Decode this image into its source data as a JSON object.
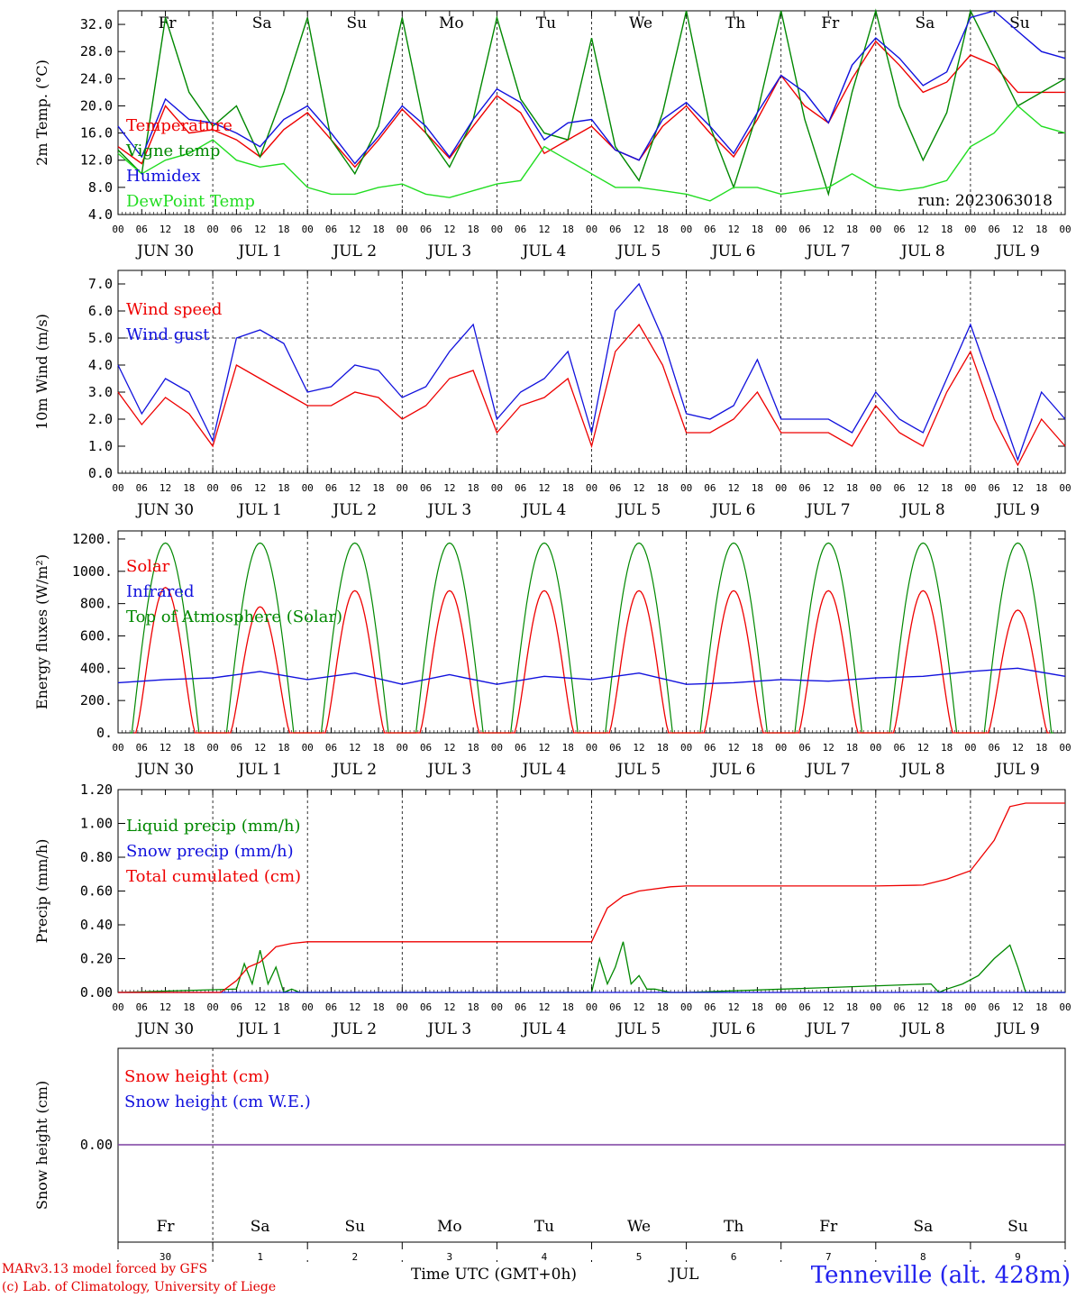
{
  "footer": {
    "model_line": "MARv3.13 model forced by GFS",
    "lab_line": "(c) Lab. of Climatology, University of Liege",
    "time_label": "Time UTC (GMT+0h)",
    "month_label": "JUL",
    "site_label": "Tenneville (alt. 428m)"
  },
  "colors": {
    "red": "#ee0000",
    "blue": "#1111dd",
    "green": "#008800",
    "lightgreen": "#22dd22",
    "purple": "#7b3fa0"
  },
  "chart_data": [
    {
      "type": "line",
      "ylabel": "2m Temp. (°C)",
      "ylim": [
        4,
        34
      ],
      "yticks": [
        "4.0",
        "8.0",
        "12.0",
        "16.0",
        "20.0",
        "24.0",
        "28.0",
        "32.0"
      ],
      "run_label": "run: 2023063018",
      "day_names": [
        "Fr",
        "Sa",
        "Su",
        "Mo",
        "Tu",
        "We",
        "Th",
        "Fr",
        "Sa",
        "Su"
      ],
      "day_labels": [
        "JUN 30",
        "JUL  1",
        "JUL  2",
        "JUL  3",
        "JUL  4",
        "JUL  5",
        "JUL  6",
        "JUL  7",
        "JUL  8",
        "JUL  9"
      ],
      "hour_ticks": [
        "00",
        "06",
        "12",
        "18"
      ],
      "x_hours": [
        0,
        6,
        12,
        18,
        24,
        30,
        36,
        42,
        48,
        54,
        60,
        66,
        72,
        78,
        84,
        90,
        96,
        102,
        108,
        114,
        120,
        126,
        132,
        138,
        144,
        150,
        156,
        162,
        168,
        174,
        180,
        186,
        192,
        198,
        204,
        210,
        216,
        222,
        228,
        234,
        240
      ],
      "series": [
        {
          "name": "Temperature",
          "color": "red",
          "values": [
            14,
            11.5,
            20,
            16,
            16.5,
            15,
            12.5,
            16.5,
            19,
            15,
            11,
            15,
            19.5,
            16,
            12.3,
            17,
            21.5,
            19,
            13,
            15,
            17,
            13.5,
            12,
            17,
            20,
            16,
            12.5,
            18,
            24.5,
            20,
            17.5,
            24,
            29.5,
            26,
            22,
            23.5,
            27.5,
            26,
            22,
            22,
            22
          ]
        },
        {
          "name": "Vigne temp",
          "color": "green",
          "values": [
            13.5,
            10,
            33,
            22,
            17,
            20,
            12.5,
            22,
            33,
            15,
            10,
            17,
            33,
            16,
            11,
            18,
            33,
            21,
            16,
            15,
            30,
            14,
            9,
            19,
            34,
            17,
            8,
            19,
            34,
            18,
            7,
            22,
            34,
            20,
            12,
            19,
            34,
            27,
            20,
            22,
            24
          ]
        },
        {
          "name": "Humidex",
          "color": "blue",
          "values": [
            17,
            12.5,
            21,
            18,
            17.5,
            16,
            14,
            18,
            20,
            16,
            11.5,
            15.5,
            20,
            17,
            12.5,
            18,
            22.5,
            20.5,
            15,
            17.5,
            18,
            13.5,
            12,
            18,
            20.5,
            17,
            13,
            19,
            24.5,
            22,
            17.5,
            26,
            30,
            27,
            23,
            25,
            33,
            34,
            31,
            28,
            27
          ]
        },
        {
          "name": "DewPoint Temp",
          "color": "lightgreen",
          "values": [
            13,
            10,
            12,
            13,
            15,
            12,
            11,
            11.5,
            8,
            7,
            7,
            8,
            8.5,
            7,
            6.5,
            7.5,
            8.5,
            9,
            14,
            12,
            10,
            8,
            8,
            7.5,
            7,
            6,
            8,
            8,
            7,
            7.5,
            8,
            10,
            8,
            7.5,
            8,
            9,
            14,
            16,
            20,
            17,
            16
          ]
        }
      ]
    },
    {
      "type": "line",
      "ylabel": "10m Wind (m/s)",
      "ylim": [
        0,
        7.5
      ],
      "yticks": [
        "0.0",
        "1.0",
        "2.0",
        "3.0",
        "4.0",
        "5.0",
        "6.0",
        "7.0"
      ],
      "reference_line": 5.0,
      "day_labels": [
        "JUN 30",
        "JUL  1",
        "JUL  2",
        "JUL  3",
        "JUL  4",
        "JUL  5",
        "JUL  6",
        "JUL  7",
        "JUL  8",
        "JUL  9"
      ],
      "hour_ticks": [
        "00",
        "06",
        "12",
        "18"
      ],
      "x_hours": [
        0,
        6,
        12,
        18,
        24,
        30,
        36,
        42,
        48,
        54,
        60,
        66,
        72,
        78,
        84,
        90,
        96,
        102,
        108,
        114,
        120,
        126,
        132,
        138,
        144,
        150,
        156,
        162,
        168,
        174,
        180,
        186,
        192,
        198,
        204,
        210,
        216,
        222,
        228,
        234,
        240
      ],
      "series": [
        {
          "name": "Wind speed",
          "color": "red",
          "values": [
            3,
            1.8,
            2.8,
            2.2,
            1,
            4,
            3.5,
            3,
            2.5,
            2.5,
            3,
            2.8,
            2,
            2.5,
            3.5,
            3.8,
            1.5,
            2.5,
            2.8,
            3.5,
            1,
            4.5,
            5.5,
            4,
            1.5,
            1.5,
            2,
            3,
            1.5,
            1.5,
            1.5,
            1,
            2.5,
            1.5,
            1,
            3,
            4.5,
            2,
            0.3,
            2,
            1
          ]
        },
        {
          "name": "Wind gust",
          "color": "blue",
          "values": [
            4,
            2.2,
            3.5,
            3,
            1.2,
            5,
            5.3,
            4.8,
            3,
            3.2,
            4,
            3.8,
            2.8,
            3.2,
            4.5,
            5.5,
            2,
            3,
            3.5,
            4.5,
            1.5,
            6,
            7,
            5,
            2.2,
            2,
            2.5,
            4.2,
            2,
            2,
            2,
            1.5,
            3,
            2,
            1.5,
            3.5,
            5.5,
            3,
            0.5,
            3,
            2
          ]
        }
      ]
    },
    {
      "type": "line",
      "ylabel": "Energy fluxes (W/m²)",
      "ylim": [
        0,
        1250
      ],
      "yticks": [
        "0.",
        "200.",
        "400.",
        "600.",
        "800.",
        "1000.",
        "1200."
      ],
      "day_labels": [
        "JUN 30",
        "JUL  1",
        "JUL  2",
        "JUL  3",
        "JUL  4",
        "JUL  5",
        "JUL  6",
        "JUL  7",
        "JUL  8",
        "JUL  9"
      ],
      "hour_ticks": [
        "00",
        "06",
        "12",
        "18"
      ],
      "series": [
        {
          "name": "Solar",
          "color": "red",
          "daily_peak": [
            900,
            780,
            880,
            880,
            880,
            880,
            880,
            880,
            880,
            760
          ]
        },
        {
          "name": "Infrared",
          "color": "blue",
          "x_hours": [
            0,
            12,
            24,
            36,
            48,
            60,
            72,
            84,
            96,
            108,
            120,
            132,
            144,
            156,
            168,
            180,
            192,
            204,
            216,
            228,
            240
          ],
          "values": [
            310,
            330,
            340,
            380,
            330,
            370,
            300,
            360,
            300,
            350,
            330,
            370,
            300,
            310,
            330,
            320,
            340,
            350,
            380,
            400,
            350
          ]
        },
        {
          "name": "Top of Atmosphere (Solar)",
          "color": "green",
          "daily_peak": [
            1175,
            1175,
            1175,
            1175,
            1175,
            1175,
            1175,
            1175,
            1175,
            1175
          ]
        }
      ]
    },
    {
      "type": "line",
      "ylabel": "Precip (mm/h)",
      "ylim": [
        0,
        1.2
      ],
      "yticks": [
        "0.00",
        "0.20",
        "0.40",
        "0.60",
        "0.80",
        "1.00",
        "1.20"
      ],
      "day_labels": [
        "JUN 30",
        "JUL  1",
        "JUL  2",
        "JUL  3",
        "JUL  4",
        "JUL  5",
        "JUL  6",
        "JUL  7",
        "JUL  8",
        "JUL  9"
      ],
      "hour_ticks": [
        "00",
        "06",
        "12",
        "18"
      ],
      "series": [
        {
          "name": "Liquid precip (mm/h)",
          "color": "green",
          "x_hours": [
            0,
            30,
            32,
            34,
            36,
            38,
            40,
            42,
            44,
            46,
            48,
            120,
            122,
            124,
            126,
            128,
            130,
            132,
            134,
            136,
            140,
            144,
            206,
            208,
            210,
            214,
            218,
            222,
            226,
            228,
            230,
            240
          ],
          "values": [
            0,
            0.02,
            0.17,
            0.05,
            0.25,
            0.05,
            0.15,
            0,
            0.02,
            0,
            0,
            0,
            0.2,
            0.05,
            0.15,
            0.3,
            0.05,
            0.1,
            0.02,
            0.02,
            0,
            0,
            0.05,
            0,
            0.02,
            0.05,
            0.1,
            0.2,
            0.28,
            0.15,
            0,
            0
          ]
        },
        {
          "name": "Snow precip (mm/h)",
          "color": "blue",
          "x_hours": [
            0,
            240
          ],
          "values": [
            0,
            0
          ]
        },
        {
          "name": "Total cumulated (cm)",
          "color": "red",
          "x_hours": [
            0,
            26,
            30,
            33,
            36,
            40,
            44,
            48,
            96,
            120,
            124,
            128,
            132,
            140,
            144,
            168,
            192,
            204,
            210,
            216,
            222,
            226,
            230,
            240
          ],
          "values": [
            0,
            0,
            0.07,
            0.15,
            0.18,
            0.27,
            0.29,
            0.3,
            0.3,
            0.3,
            0.5,
            0.57,
            0.6,
            0.625,
            0.63,
            0.63,
            0.63,
            0.635,
            0.67,
            0.72,
            0.9,
            1.1,
            1.12,
            1.12
          ]
        }
      ]
    },
    {
      "type": "line",
      "ylabel": "Snow height (cm)",
      "yticks": [
        "0.00"
      ],
      "day_names": [
        "Fr",
        "Sa",
        "Su",
        "Mo",
        "Tu",
        "We",
        "Th",
        "Fr",
        "Sa",
        "Su"
      ],
      "day_numbers": [
        "30",
        "1",
        "2",
        "3",
        "4",
        "5",
        "6",
        "7",
        "8",
        "9"
      ],
      "series": [
        {
          "name": "Snow height (cm)",
          "color": "red",
          "x_hours": [
            0,
            240
          ],
          "values": [
            0,
            0
          ]
        },
        {
          "name": "Snow height (cm W.E.)",
          "color": "blue",
          "x_hours": [
            0,
            240
          ],
          "values": [
            0,
            0
          ]
        }
      ]
    }
  ]
}
